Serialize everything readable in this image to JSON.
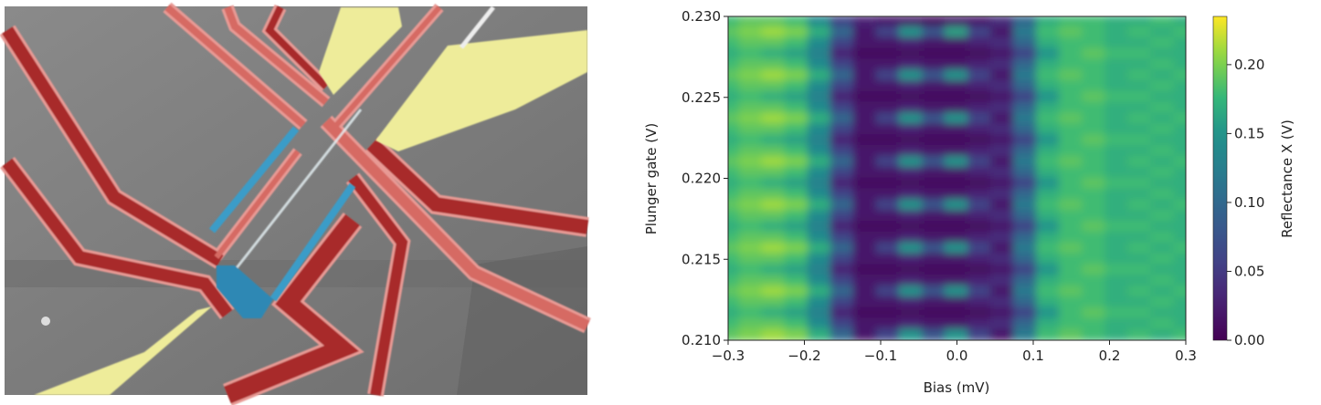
{
  "sem_image": {
    "colors": {
      "gate_red": "#a82a2a",
      "gate_red_edge": "#e89a94",
      "lead_yellow": "#eeec9a",
      "nanowire_blue": "#3a9cc8",
      "substrate_gray": "#7a7a7a"
    }
  },
  "chart_data": {
    "type": "heatmap",
    "xlabel": "Bias (mV)",
    "ylabel": "Plunger gate (V)",
    "colorbar_label": "Reflectance X (V)",
    "colormap": "viridis",
    "xlim": [
      -0.3,
      0.3
    ],
    "ylim": [
      0.21,
      0.23
    ],
    "clim": [
      0.0,
      0.235
    ],
    "x_ticks": [
      "−0.3",
      "−0.2",
      "−0.1",
      "0.0",
      "0.1",
      "0.2",
      "0.3"
    ],
    "x_tick_values": [
      -0.3,
      -0.2,
      -0.1,
      0.0,
      0.1,
      0.2,
      0.3
    ],
    "y_ticks": [
      "0.210",
      "0.215",
      "0.220",
      "0.225",
      "0.230"
    ],
    "y_tick_values": [
      0.21,
      0.215,
      0.22,
      0.225,
      0.23
    ],
    "colorbar_ticks": [
      "0.00",
      "0.05",
      "0.10",
      "0.15",
      "0.20"
    ],
    "colorbar_tick_values": [
      0.0,
      0.05,
      0.1,
      0.15,
      0.2
    ],
    "x": [
      -0.3,
      -0.27,
      -0.24,
      -0.21,
      -0.18,
      -0.15,
      -0.12,
      -0.09,
      -0.06,
      -0.03,
      0.0,
      0.03,
      0.06,
      0.09,
      0.12,
      0.15,
      0.18,
      0.21,
      0.24,
      0.27,
      0.3
    ],
    "y_top": 0.23,
    "y_step": -0.000667,
    "z": [
      [
        0.18,
        0.19,
        0.19,
        0.18,
        0.14,
        0.06,
        0.03,
        0.02,
        0.02,
        0.01,
        0.02,
        0.02,
        0.04,
        0.1,
        0.17,
        0.18,
        0.18,
        0.17,
        0.17,
        0.18,
        0.17
      ],
      [
        0.19,
        0.2,
        0.21,
        0.2,
        0.17,
        0.1,
        0.02,
        0.06,
        0.15,
        0.08,
        0.16,
        0.06,
        0.02,
        0.12,
        0.18,
        0.19,
        0.18,
        0.17,
        0.18,
        0.17,
        0.18
      ],
      [
        0.18,
        0.19,
        0.19,
        0.18,
        0.14,
        0.06,
        0.02,
        0.02,
        0.03,
        0.02,
        0.02,
        0.03,
        0.04,
        0.1,
        0.17,
        0.18,
        0.18,
        0.17,
        0.17,
        0.18,
        0.17
      ],
      [
        0.17,
        0.18,
        0.17,
        0.16,
        0.13,
        0.03,
        0.01,
        0.01,
        0.01,
        0.01,
        0.01,
        0.01,
        0.02,
        0.06,
        0.15,
        0.18,
        0.19,
        0.18,
        0.18,
        0.17,
        0.17
      ],
      [
        0.18,
        0.19,
        0.19,
        0.18,
        0.14,
        0.06,
        0.02,
        0.02,
        0.03,
        0.02,
        0.02,
        0.03,
        0.04,
        0.1,
        0.17,
        0.18,
        0.18,
        0.17,
        0.17,
        0.18,
        0.17
      ],
      [
        0.19,
        0.2,
        0.21,
        0.2,
        0.17,
        0.1,
        0.02,
        0.06,
        0.15,
        0.08,
        0.15,
        0.06,
        0.02,
        0.12,
        0.18,
        0.19,
        0.18,
        0.17,
        0.18,
        0.17,
        0.18
      ],
      [
        0.18,
        0.19,
        0.19,
        0.18,
        0.14,
        0.06,
        0.02,
        0.02,
        0.03,
        0.02,
        0.02,
        0.03,
        0.04,
        0.1,
        0.17,
        0.18,
        0.18,
        0.17,
        0.17,
        0.18,
        0.17
      ],
      [
        0.17,
        0.18,
        0.17,
        0.16,
        0.13,
        0.03,
        0.01,
        0.01,
        0.01,
        0.01,
        0.01,
        0.01,
        0.02,
        0.06,
        0.15,
        0.18,
        0.19,
        0.18,
        0.18,
        0.17,
        0.17
      ],
      [
        0.18,
        0.19,
        0.19,
        0.18,
        0.14,
        0.06,
        0.02,
        0.02,
        0.03,
        0.02,
        0.02,
        0.03,
        0.04,
        0.1,
        0.17,
        0.18,
        0.18,
        0.17,
        0.17,
        0.18,
        0.17
      ],
      [
        0.19,
        0.2,
        0.21,
        0.2,
        0.17,
        0.1,
        0.02,
        0.06,
        0.15,
        0.08,
        0.15,
        0.06,
        0.02,
        0.12,
        0.18,
        0.19,
        0.18,
        0.17,
        0.18,
        0.17,
        0.18
      ],
      [
        0.18,
        0.19,
        0.19,
        0.18,
        0.14,
        0.06,
        0.02,
        0.02,
        0.03,
        0.02,
        0.02,
        0.03,
        0.04,
        0.1,
        0.17,
        0.18,
        0.18,
        0.17,
        0.17,
        0.18,
        0.17
      ],
      [
        0.17,
        0.18,
        0.17,
        0.16,
        0.13,
        0.03,
        0.01,
        0.01,
        0.01,
        0.01,
        0.01,
        0.01,
        0.02,
        0.06,
        0.15,
        0.18,
        0.19,
        0.18,
        0.18,
        0.17,
        0.17
      ],
      [
        0.18,
        0.19,
        0.19,
        0.18,
        0.14,
        0.06,
        0.02,
        0.02,
        0.03,
        0.02,
        0.02,
        0.03,
        0.04,
        0.1,
        0.17,
        0.18,
        0.18,
        0.17,
        0.17,
        0.18,
        0.17
      ],
      [
        0.19,
        0.2,
        0.21,
        0.2,
        0.17,
        0.1,
        0.02,
        0.06,
        0.15,
        0.08,
        0.15,
        0.06,
        0.02,
        0.12,
        0.18,
        0.19,
        0.18,
        0.17,
        0.18,
        0.17,
        0.18
      ],
      [
        0.18,
        0.19,
        0.19,
        0.18,
        0.14,
        0.06,
        0.02,
        0.02,
        0.03,
        0.02,
        0.02,
        0.03,
        0.04,
        0.1,
        0.17,
        0.18,
        0.18,
        0.17,
        0.17,
        0.18,
        0.17
      ],
      [
        0.17,
        0.18,
        0.17,
        0.16,
        0.13,
        0.03,
        0.01,
        0.01,
        0.01,
        0.01,
        0.01,
        0.01,
        0.02,
        0.06,
        0.15,
        0.18,
        0.19,
        0.18,
        0.18,
        0.17,
        0.17
      ],
      [
        0.18,
        0.19,
        0.19,
        0.18,
        0.14,
        0.06,
        0.02,
        0.02,
        0.03,
        0.02,
        0.02,
        0.03,
        0.04,
        0.1,
        0.17,
        0.18,
        0.18,
        0.17,
        0.17,
        0.18,
        0.17
      ],
      [
        0.19,
        0.2,
        0.21,
        0.2,
        0.17,
        0.1,
        0.02,
        0.06,
        0.15,
        0.08,
        0.15,
        0.06,
        0.02,
        0.12,
        0.18,
        0.19,
        0.18,
        0.17,
        0.18,
        0.17,
        0.18
      ],
      [
        0.18,
        0.19,
        0.19,
        0.18,
        0.14,
        0.06,
        0.02,
        0.02,
        0.03,
        0.02,
        0.02,
        0.03,
        0.04,
        0.1,
        0.17,
        0.18,
        0.18,
        0.17,
        0.17,
        0.18,
        0.17
      ],
      [
        0.17,
        0.18,
        0.17,
        0.16,
        0.13,
        0.03,
        0.01,
        0.01,
        0.01,
        0.01,
        0.01,
        0.01,
        0.02,
        0.06,
        0.15,
        0.18,
        0.19,
        0.18,
        0.18,
        0.17,
        0.17
      ],
      [
        0.18,
        0.19,
        0.19,
        0.18,
        0.14,
        0.06,
        0.02,
        0.02,
        0.03,
        0.02,
        0.02,
        0.03,
        0.04,
        0.1,
        0.17,
        0.18,
        0.18,
        0.17,
        0.17,
        0.18,
        0.17
      ],
      [
        0.19,
        0.2,
        0.21,
        0.2,
        0.17,
        0.1,
        0.02,
        0.06,
        0.15,
        0.08,
        0.15,
        0.06,
        0.02,
        0.12,
        0.18,
        0.19,
        0.18,
        0.17,
        0.18,
        0.17,
        0.18
      ],
      [
        0.18,
        0.19,
        0.19,
        0.18,
        0.14,
        0.06,
        0.02,
        0.02,
        0.03,
        0.02,
        0.02,
        0.03,
        0.04,
        0.1,
        0.17,
        0.18,
        0.18,
        0.17,
        0.17,
        0.18,
        0.17
      ],
      [
        0.17,
        0.18,
        0.17,
        0.16,
        0.13,
        0.03,
        0.01,
        0.01,
        0.01,
        0.01,
        0.01,
        0.01,
        0.02,
        0.06,
        0.15,
        0.18,
        0.19,
        0.18,
        0.18,
        0.17,
        0.17
      ],
      [
        0.18,
        0.19,
        0.19,
        0.18,
        0.14,
        0.06,
        0.02,
        0.02,
        0.03,
        0.02,
        0.02,
        0.03,
        0.04,
        0.1,
        0.17,
        0.18,
        0.18,
        0.17,
        0.17,
        0.18,
        0.17
      ],
      [
        0.19,
        0.2,
        0.21,
        0.2,
        0.17,
        0.1,
        0.02,
        0.06,
        0.15,
        0.08,
        0.15,
        0.06,
        0.02,
        0.12,
        0.18,
        0.19,
        0.18,
        0.17,
        0.18,
        0.17,
        0.18
      ],
      [
        0.18,
        0.19,
        0.19,
        0.18,
        0.14,
        0.06,
        0.02,
        0.02,
        0.03,
        0.02,
        0.02,
        0.03,
        0.04,
        0.1,
        0.17,
        0.18,
        0.18,
        0.17,
        0.17,
        0.18,
        0.17
      ],
      [
        0.17,
        0.18,
        0.17,
        0.16,
        0.13,
        0.03,
        0.01,
        0.01,
        0.01,
        0.01,
        0.01,
        0.01,
        0.02,
        0.06,
        0.15,
        0.18,
        0.19,
        0.18,
        0.18,
        0.17,
        0.17
      ],
      [
        0.18,
        0.19,
        0.19,
        0.18,
        0.14,
        0.06,
        0.02,
        0.02,
        0.03,
        0.02,
        0.02,
        0.03,
        0.04,
        0.1,
        0.17,
        0.18,
        0.18,
        0.17,
        0.17,
        0.18,
        0.17
      ],
      [
        0.19,
        0.2,
        0.21,
        0.2,
        0.17,
        0.1,
        0.02,
        0.06,
        0.15,
        0.08,
        0.15,
        0.06,
        0.02,
        0.12,
        0.18,
        0.19,
        0.18,
        0.17,
        0.18,
        0.17,
        0.18
      ]
    ]
  }
}
